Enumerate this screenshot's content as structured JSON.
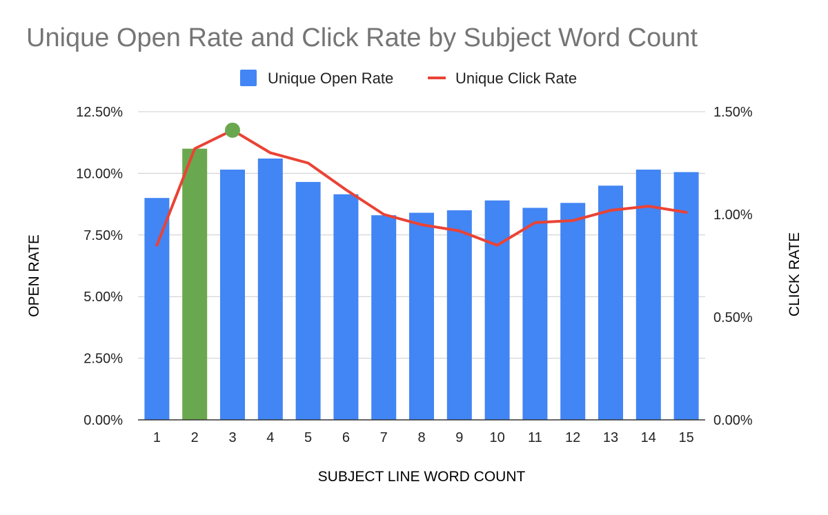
{
  "chart_data": {
    "type": "bar",
    "title": "Unique Open Rate and Click Rate by Subject Word Count",
    "xlabel": "SUBJECT LINE WORD COUNT",
    "ylabel": "OPEN RATE",
    "y2label": "CLICK RATE",
    "categories": [
      "1",
      "2",
      "3",
      "4",
      "5",
      "6",
      "7",
      "8",
      "9",
      "10",
      "11",
      "12",
      "13",
      "14",
      "15"
    ],
    "ylim": [
      0,
      12.5
    ],
    "y2lim": [
      0,
      1.5
    ],
    "yticks": [
      "0.00%",
      "2.50%",
      "5.00%",
      "7.50%",
      "10.00%",
      "12.50%"
    ],
    "y2ticks": [
      "0.00%",
      "0.50%",
      "1.00%",
      "1.50%"
    ],
    "grid": true,
    "legend_position": "top",
    "series": [
      {
        "name": "Unique Open Rate",
        "type": "bar",
        "axis": "left",
        "color": "#4285f4",
        "values": [
          9.0,
          11.0,
          10.15,
          10.6,
          9.65,
          9.15,
          8.3,
          8.4,
          8.5,
          8.9,
          8.6,
          8.8,
          9.5,
          10.15,
          10.05
        ],
        "highlight": {
          "index": 1,
          "color": "#6aa84f"
        }
      },
      {
        "name": "Unique Click Rate",
        "type": "line",
        "axis": "right",
        "color": "#ea4335",
        "values": [
          0.85,
          1.32,
          1.41,
          1.3,
          1.25,
          1.12,
          1.0,
          0.95,
          0.92,
          0.85,
          0.96,
          0.97,
          1.02,
          1.04,
          1.01
        ],
        "highlight": {
          "index": 2,
          "color": "#6aa84f"
        }
      }
    ]
  }
}
